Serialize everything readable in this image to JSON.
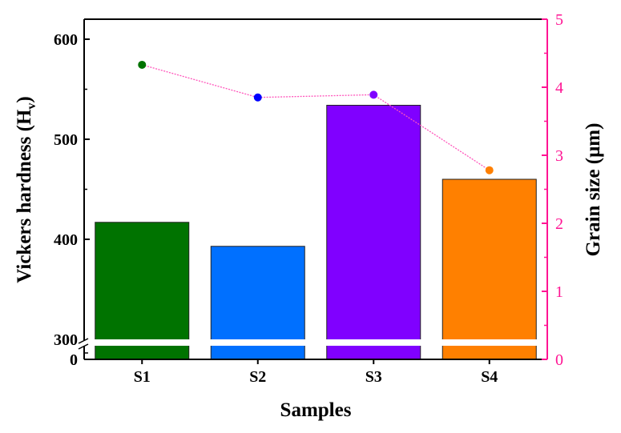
{
  "chart_data": {
    "type": "bar",
    "title": "",
    "xlabel": "Samples",
    "ylabel": {
      "main": "Vickers hardness (H",
      "sub": "v",
      "end": ")"
    },
    "y2label": "Grain size (μm)",
    "categories": [
      "S1",
      "S2",
      "S3",
      "S4"
    ],
    "series": [
      {
        "name": "Vickers hardness",
        "axis": "left",
        "kind": "bar",
        "values": [
          417,
          393,
          534,
          460
        ],
        "colors": [
          "#007300",
          "#0070ff",
          "#8000ff",
          "#ff8000"
        ]
      },
      {
        "name": "Grain size",
        "axis": "right",
        "kind": "line-dotted",
        "values": [
          4.33,
          3.85,
          3.89,
          2.78
        ],
        "colors": [
          "#007300",
          "#0000ff",
          "#8000ff",
          "#ff8000"
        ],
        "line_color": "#ff55bb"
      }
    ],
    "ylim": [
      300,
      640
    ],
    "y_axis_break": {
      "from": 0,
      "to": 300
    },
    "yticks": [
      "0",
      "300",
      "400",
      "500",
      "600"
    ],
    "y2lim": [
      0,
      5
    ],
    "y2ticks": [
      "0",
      "1",
      "2",
      "3",
      "4",
      "5"
    ],
    "y2_color": "#ff1493",
    "grid": false,
    "legend": "none"
  }
}
